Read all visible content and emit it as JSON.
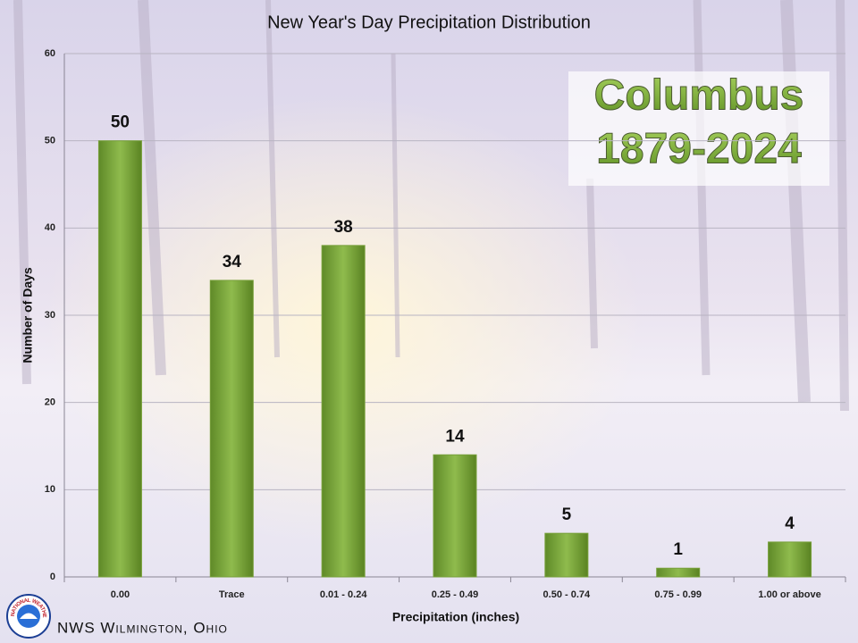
{
  "chart_data": {
    "type": "bar",
    "title": "New Year's Day Precipitation Distribution",
    "location_label": "Columbus",
    "period_label": "1879-2024",
    "x_label": "Precipitation (inches)",
    "y_label": "Number of Days",
    "categories": [
      "0.00",
      "Trace",
      "0.01 - 0.24",
      "0.25 - 0.49",
      "0.50 - 0.74",
      "0.75 - 0.99",
      "1.00 or above"
    ],
    "values": [
      50,
      34,
      38,
      14,
      5,
      1,
      4
    ],
    "color": "#77a03a",
    "ylim": [
      0,
      60
    ],
    "yticks": [
      0,
      10,
      20,
      30,
      40,
      50,
      60
    ],
    "grid": true,
    "footer": "NWS Wilmington, Ohio",
    "logo_text": "NATIONAL WEATHER SERVICE"
  }
}
